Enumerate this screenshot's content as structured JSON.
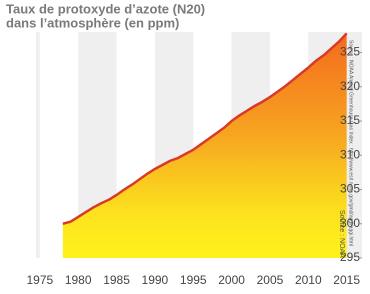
{
  "chart_data": {
    "type": "area",
    "title": "Taux de protoxyde d’azote  (N20)",
    "subtitle": "dans l’atmosphère (en ppm)",
    "annotations": [
      "Source : NOAA Annual Greenhouse Gas Index : http://www.esrl.noaa.gov/gmd/aggi/aggi.html",
      "Source : NOAA"
    ],
    "x": [
      1978,
      1979,
      1980,
      1981,
      1982,
      1983,
      1984,
      1985,
      1986,
      1987,
      1988,
      1989,
      1990,
      1991,
      1992,
      1993,
      1994,
      1995,
      1996,
      1997,
      1998,
      1999,
      2000,
      2001,
      2002,
      2003,
      2004,
      2005,
      2006,
      2007,
      2008,
      2009,
      2010,
      2011,
      2012,
      2013,
      2014,
      2015
    ],
    "values": [
      300.0,
      300.3,
      301.0,
      301.7,
      302.4,
      303.0,
      303.5,
      304.2,
      305.0,
      305.7,
      306.5,
      307.3,
      308.0,
      308.6,
      309.2,
      309.6,
      310.2,
      310.8,
      311.6,
      312.4,
      313.2,
      314.0,
      315.0,
      315.8,
      316.5,
      317.2,
      317.8,
      318.5,
      319.3,
      320.1,
      321.0,
      321.9,
      322.8,
      323.8,
      324.6,
      325.6,
      326.6,
      327.8
    ],
    "color": "#d83a2a",
    "xlim": [
      1974.5,
      2017
    ],
    "xticks": [
      1975,
      1980,
      1985,
      1990,
      1995,
      2000,
      2005,
      2010,
      2015
    ],
    "ylim": [
      295,
      328
    ],
    "yticks": [
      295,
      300,
      305,
      310,
      315,
      320,
      325
    ]
  }
}
